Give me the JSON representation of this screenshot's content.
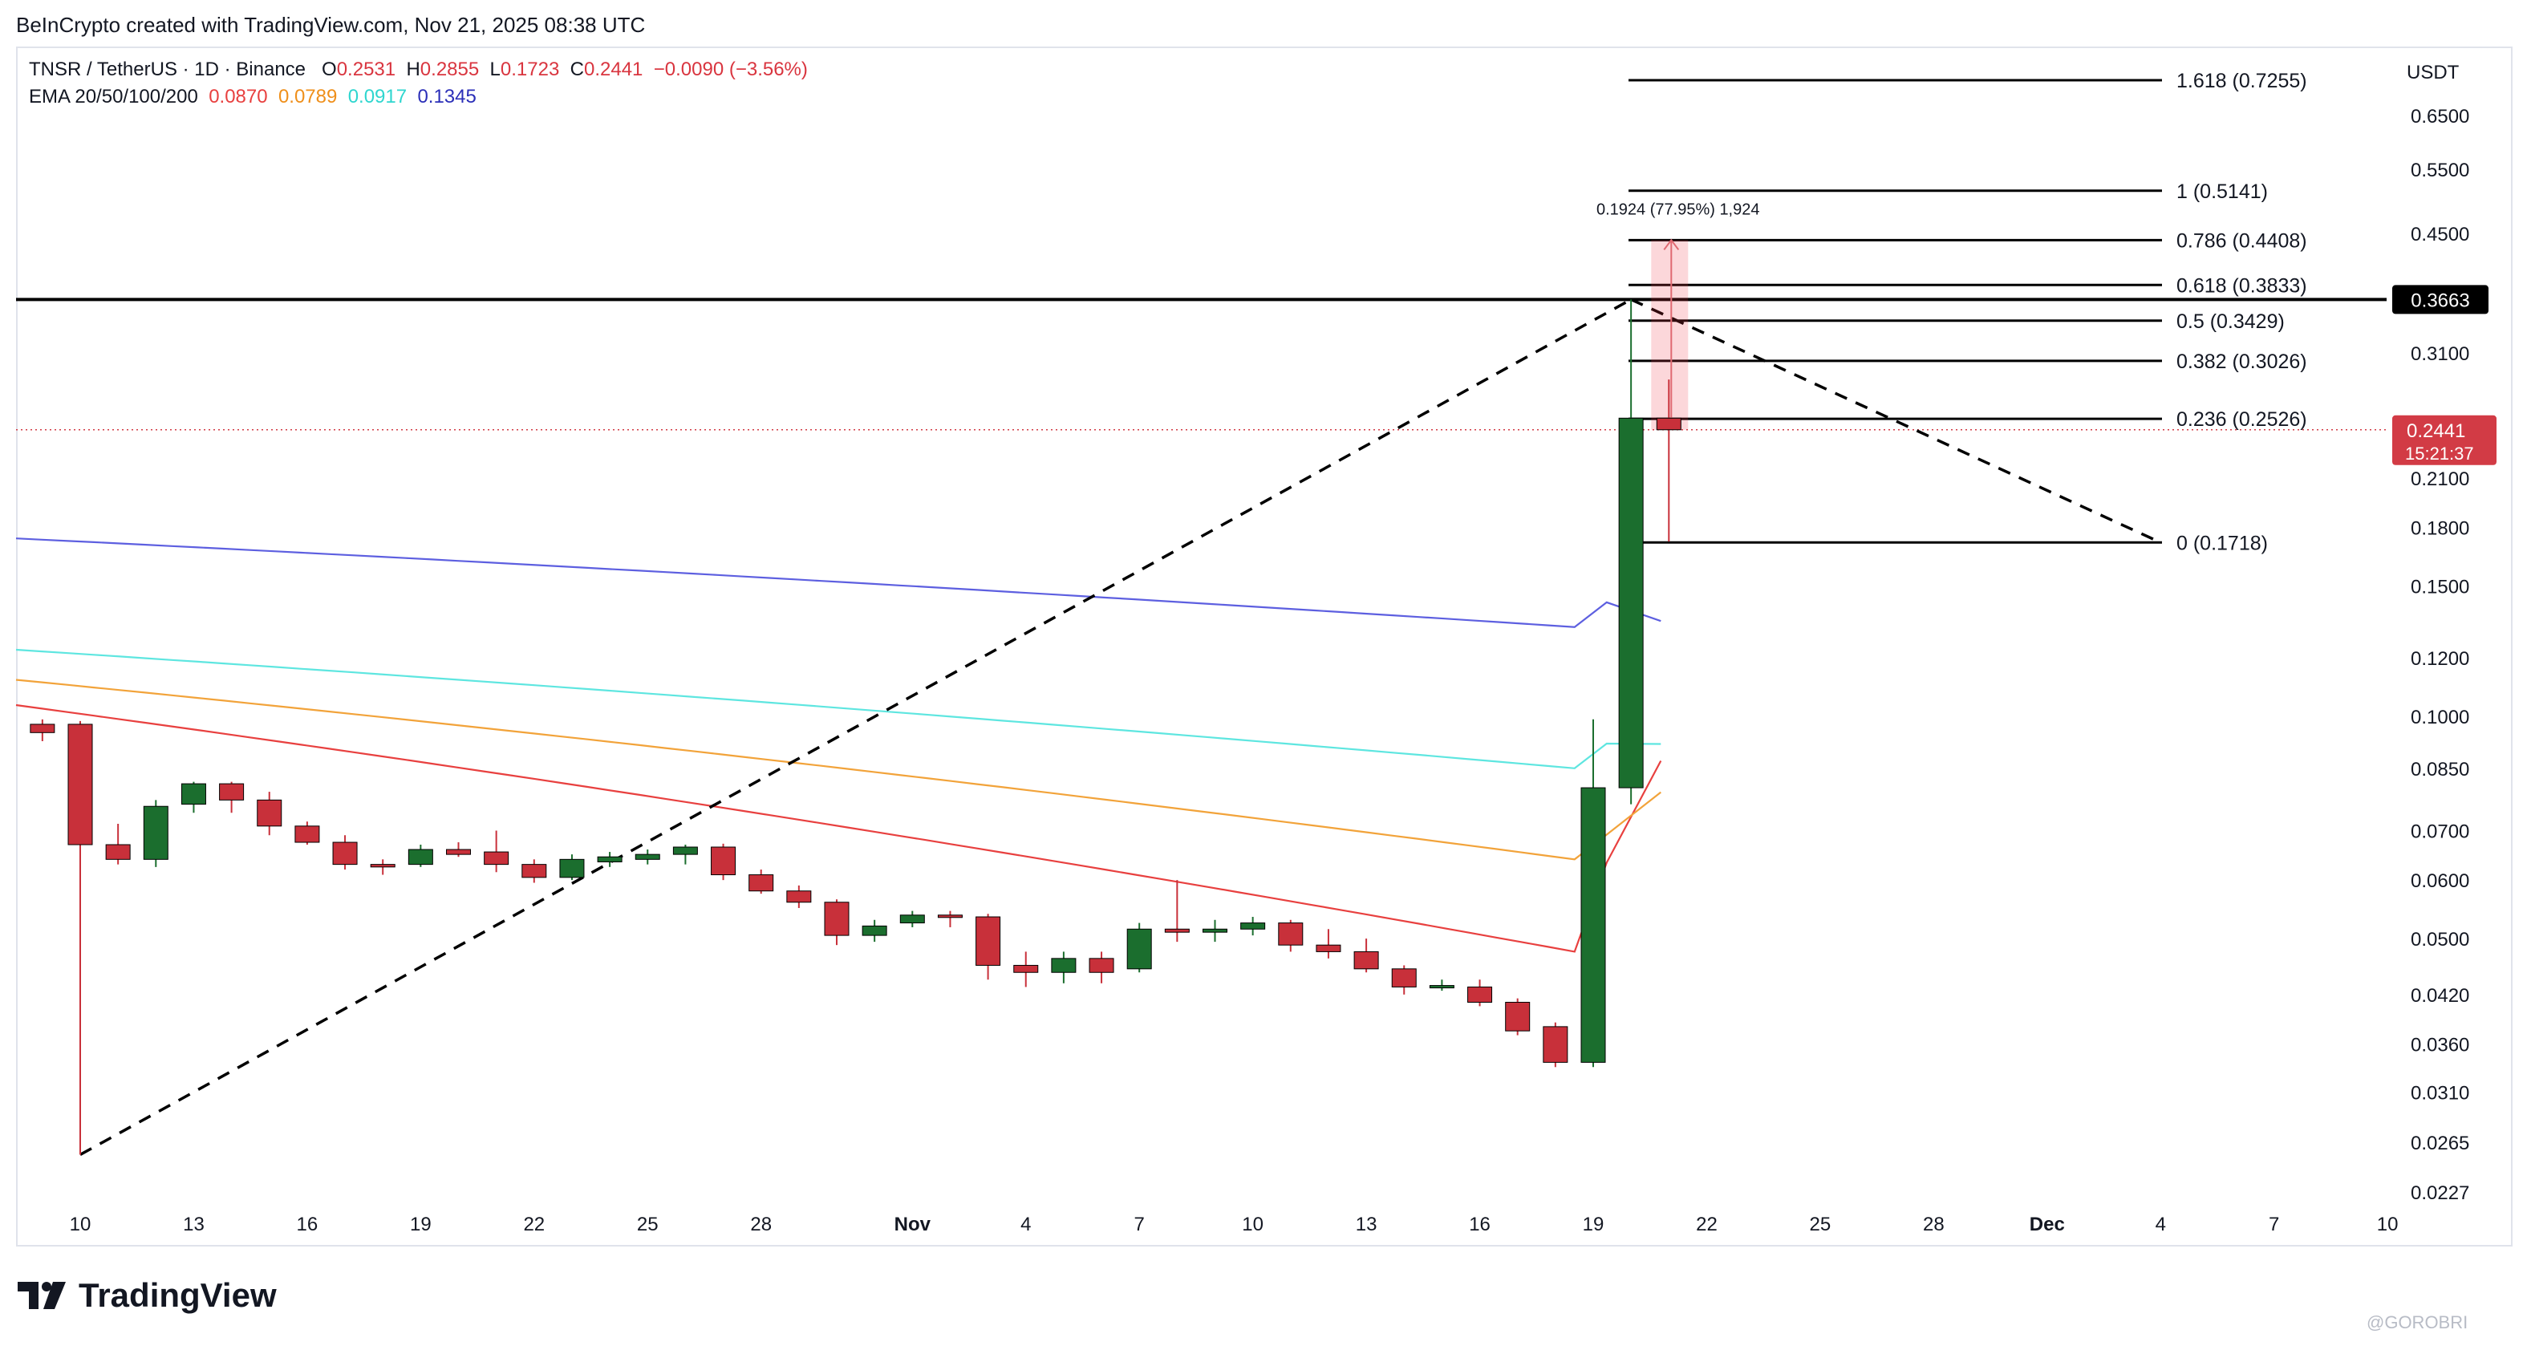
{
  "header": {
    "credit": "BeInCrypto created with TradingView.com, Nov 21, 2025 08:38 UTC"
  },
  "legend": {
    "symbol": "TNSR / TetherUS · 1D · Binance",
    "o_label": "O",
    "o_value": "0.2531",
    "h_label": "H",
    "h_value": "0.2855",
    "l_label": "L",
    "l_value": "0.1723",
    "c_label": "C",
    "c_value": "0.2441",
    "change": "−0.0090 (−3.56%)",
    "ema_label": "EMA 20/50/100/200",
    "ema_values": [
      "0.0870",
      "0.0789",
      "0.0917",
      "0.1345"
    ]
  },
  "footer": {
    "brand": "TradingView",
    "watermark": "@GOROBRI"
  },
  "colors": {
    "up": "#1b6e2e",
    "down": "#c8303a",
    "ema20": "#e8403f",
    "ema50": "#f2a33a",
    "ema100": "#5ee6e0",
    "ema200": "#5d5fe0",
    "resistance": "#000000",
    "price_tag": "#d23b45"
  },
  "chart_data": {
    "type": "candlestick",
    "y_scale": "log",
    "currency_label": "USDT",
    "x_ticks": [
      "10",
      "13",
      "16",
      "19",
      "22",
      "25",
      "28",
      "Nov",
      "4",
      "7",
      "10",
      "13",
      "16",
      "19",
      "22",
      "25",
      "28",
      "Dec",
      "4",
      "7",
      "10"
    ],
    "y_ticks": [
      "0.6500",
      "0.5500",
      "0.4500",
      "0.3100",
      "0.2100",
      "0.1800",
      "0.1500",
      "0.1200",
      "0.1000",
      "0.0850",
      "0.0700",
      "0.0600",
      "0.0500",
      "0.0420",
      "0.0360",
      "0.0310",
      "0.0265",
      "0.0227"
    ],
    "candles": [
      {
        "date": "Oct 9",
        "o": 0.0975,
        "h": 0.099,
        "l": 0.0925,
        "c": 0.095
      },
      {
        "date": "Oct 10",
        "o": 0.0975,
        "h": 0.0985,
        "l": 0.0255,
        "c": 0.067
      },
      {
        "date": "Oct 11",
        "o": 0.067,
        "h": 0.0715,
        "l": 0.063,
        "c": 0.064
      },
      {
        "date": "Oct 12",
        "o": 0.064,
        "h": 0.077,
        "l": 0.0625,
        "c": 0.0755
      },
      {
        "date": "Oct 13",
        "o": 0.076,
        "h": 0.0815,
        "l": 0.074,
        "c": 0.081
      },
      {
        "date": "Oct 14",
        "o": 0.081,
        "h": 0.0815,
        "l": 0.074,
        "c": 0.077
      },
      {
        "date": "Oct 15",
        "o": 0.077,
        "h": 0.079,
        "l": 0.069,
        "c": 0.071
      },
      {
        "date": "Oct 16",
        "o": 0.071,
        "h": 0.072,
        "l": 0.067,
        "c": 0.0675
      },
      {
        "date": "Oct 17",
        "o": 0.0675,
        "h": 0.069,
        "l": 0.062,
        "c": 0.063
      },
      {
        "date": "Oct 18",
        "o": 0.063,
        "h": 0.064,
        "l": 0.061,
        "c": 0.0625
      },
      {
        "date": "Oct 19",
        "o": 0.063,
        "h": 0.067,
        "l": 0.0625,
        "c": 0.066
      },
      {
        "date": "Oct 20",
        "o": 0.066,
        "h": 0.0675,
        "l": 0.0645,
        "c": 0.065
      },
      {
        "date": "Oct 21",
        "o": 0.0655,
        "h": 0.07,
        "l": 0.0615,
        "c": 0.063
      },
      {
        "date": "Oct 22",
        "o": 0.063,
        "h": 0.064,
        "l": 0.0595,
        "c": 0.0605
      },
      {
        "date": "Oct 23",
        "o": 0.0605,
        "h": 0.065,
        "l": 0.06,
        "c": 0.064
      },
      {
        "date": "Oct 24",
        "o": 0.0635,
        "h": 0.0655,
        "l": 0.0625,
        "c": 0.0645
      },
      {
        "date": "Oct 25",
        "o": 0.064,
        "h": 0.066,
        "l": 0.063,
        "c": 0.065
      },
      {
        "date": "Oct 26",
        "o": 0.065,
        "h": 0.067,
        "l": 0.063,
        "c": 0.0665
      },
      {
        "date": "Oct 27",
        "o": 0.0665,
        "h": 0.0672,
        "l": 0.06,
        "c": 0.061
      },
      {
        "date": "Oct 28",
        "o": 0.061,
        "h": 0.062,
        "l": 0.0575,
        "c": 0.058
      },
      {
        "date": "Oct 29",
        "o": 0.058,
        "h": 0.059,
        "l": 0.055,
        "c": 0.056
      },
      {
        "date": "Oct 30",
        "o": 0.056,
        "h": 0.0565,
        "l": 0.049,
        "c": 0.0505
      },
      {
        "date": "Oct 31",
        "o": 0.0505,
        "h": 0.053,
        "l": 0.0495,
        "c": 0.052
      },
      {
        "date": "Nov 1",
        "o": 0.0525,
        "h": 0.0545,
        "l": 0.0518,
        "c": 0.0538
      },
      {
        "date": "Nov 2",
        "o": 0.0538,
        "h": 0.0545,
        "l": 0.0518,
        "c": 0.0535
      },
      {
        "date": "Nov 3",
        "o": 0.0535,
        "h": 0.054,
        "l": 0.044,
        "c": 0.046
      },
      {
        "date": "Nov 4",
        "o": 0.046,
        "h": 0.048,
        "l": 0.043,
        "c": 0.045
      },
      {
        "date": "Nov 5",
        "o": 0.045,
        "h": 0.048,
        "l": 0.0435,
        "c": 0.047
      },
      {
        "date": "Nov 6",
        "o": 0.047,
        "h": 0.048,
        "l": 0.0435,
        "c": 0.045
      },
      {
        "date": "Nov 7",
        "o": 0.0455,
        "h": 0.0525,
        "l": 0.045,
        "c": 0.0515
      },
      {
        "date": "Nov 8",
        "o": 0.0515,
        "h": 0.06,
        "l": 0.0495,
        "c": 0.051
      },
      {
        "date": "Nov 9",
        "o": 0.051,
        "h": 0.053,
        "l": 0.0495,
        "c": 0.0515
      },
      {
        "date": "Nov 10",
        "o": 0.0515,
        "h": 0.0535,
        "l": 0.0505,
        "c": 0.0525
      },
      {
        "date": "Nov 11",
        "o": 0.0525,
        "h": 0.053,
        "l": 0.048,
        "c": 0.049
      },
      {
        "date": "Nov 12",
        "o": 0.049,
        "h": 0.0515,
        "l": 0.047,
        "c": 0.048
      },
      {
        "date": "Nov 13",
        "o": 0.048,
        "h": 0.05,
        "l": 0.045,
        "c": 0.0455
      },
      {
        "date": "Nov 14",
        "o": 0.0455,
        "h": 0.046,
        "l": 0.042,
        "c": 0.043
      },
      {
        "date": "Nov 15",
        "o": 0.043,
        "h": 0.044,
        "l": 0.0425,
        "c": 0.0432
      },
      {
        "date": "Nov 16",
        "o": 0.043,
        "h": 0.044,
        "l": 0.0405,
        "c": 0.041
      },
      {
        "date": "Nov 17",
        "o": 0.041,
        "h": 0.0415,
        "l": 0.037,
        "c": 0.0375
      },
      {
        "date": "Nov 18",
        "o": 0.038,
        "h": 0.0385,
        "l": 0.0335,
        "c": 0.034
      },
      {
        "date": "Nov 19",
        "o": 0.034,
        "h": 0.099,
        "l": 0.0335,
        "c": 0.08
      },
      {
        "date": "Nov 20",
        "o": 0.08,
        "h": 0.3663,
        "l": 0.076,
        "c": 0.2531
      },
      {
        "date": "Nov 21",
        "o": 0.2531,
        "h": 0.2855,
        "l": 0.1723,
        "c": 0.2441
      }
    ],
    "ema": [
      {
        "name": "EMA 20",
        "color": "#e8403f",
        "start": 0.1035,
        "end_before_rally": 0.048,
        "end": 0.087
      },
      {
        "name": "EMA 50",
        "color": "#f2a33a",
        "start": 0.112,
        "end_before_rally": 0.064,
        "end": 0.0789
      },
      {
        "name": "EMA 100",
        "color": "#5ee6e0",
        "start": 0.123,
        "end_before_rally": 0.085,
        "end": 0.0917
      },
      {
        "name": "EMA 200",
        "color": "#5d5fe0",
        "start": 0.174,
        "end_before_rally": 0.132,
        "end": 0.1345
      }
    ],
    "fib_levels": [
      {
        "label": "1.618 (0.7255)",
        "value": 0.7255
      },
      {
        "label": "1 (0.5141)",
        "value": 0.5141
      },
      {
        "label": "0.786 (0.4408)",
        "value": 0.4408
      },
      {
        "label": "0.618 (0.3833)",
        "value": 0.3833
      },
      {
        "label": "0.5 (0.3429)",
        "value": 0.3429
      },
      {
        "label": "0.382 (0.3026)",
        "value": 0.3026
      },
      {
        "label": "0.236 (0.2526)",
        "value": 0.2526
      },
      {
        "label": "0 (0.1718)",
        "value": 0.1718
      }
    ],
    "resistance": {
      "value": 0.3663,
      "label": "0.3663"
    },
    "last_price": {
      "value": 0.2441,
      "label": "0.2441",
      "countdown": "15:21:37"
    },
    "measure": {
      "label": "0.1924 (77.95%) 1,924",
      "from": 0.2441,
      "to": 0.4408
    },
    "trend_lines": [
      {
        "from_date": "Oct 10",
        "from_value": 0.0255,
        "to_date": "Nov 20",
        "to_value": 0.3663
      },
      {
        "from_date": "Nov 20",
        "from_value": 0.3663,
        "to_date": "Dec 4",
        "to_value": 0.1718
      }
    ]
  }
}
